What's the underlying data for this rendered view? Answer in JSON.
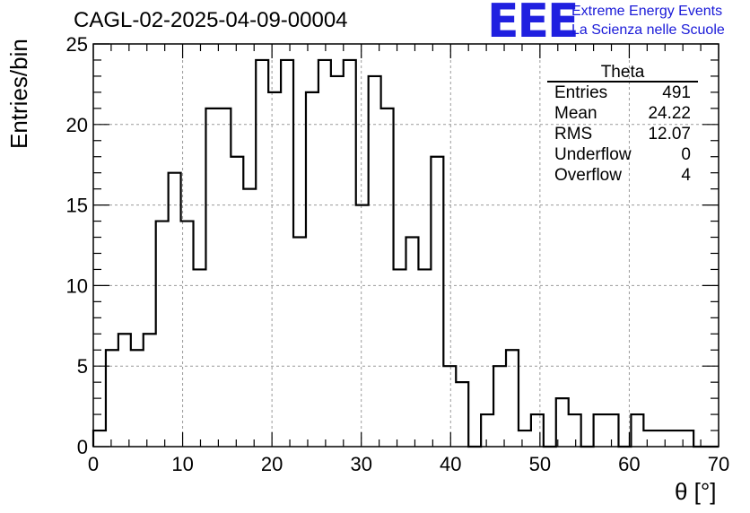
{
  "plot_title": "CAGL-02-2025-04-09-00004",
  "logo": {
    "mark": "EEE",
    "line1": "Extreme Energy Events",
    "line2": "La Scienza nelle Scuole",
    "color": "#2020e0"
  },
  "stats": {
    "title": "Theta",
    "rows": [
      {
        "key": "Entries",
        "value": "491"
      },
      {
        "key": "Mean",
        "value": "24.22"
      },
      {
        "key": "RMS",
        "value": "12.07"
      },
      {
        "key": "Underflow",
        "value": "0"
      },
      {
        "key": "Overflow",
        "value": "4"
      }
    ]
  },
  "chart_data": {
    "type": "bar",
    "style": "step-histogram",
    "title": "CAGL-02-2025-04-09-00004",
    "xlabel": "θ [°]",
    "ylabel": "Entries/bin",
    "xlim": [
      0,
      70
    ],
    "ylim": [
      0,
      25
    ],
    "xticks": [
      0,
      10,
      20,
      30,
      40,
      50,
      60,
      70
    ],
    "yticks": [
      0,
      5,
      10,
      15,
      20,
      25
    ],
    "grid": true,
    "legend": "top-right",
    "bin_width": 1.4,
    "bin_edges_start": 0,
    "values": [
      1,
      6,
      7,
      6,
      7,
      14,
      17,
      14,
      11,
      21,
      21,
      18,
      16,
      24,
      22,
      24,
      13,
      22,
      24,
      23,
      24,
      15,
      23,
      21,
      11,
      13,
      11,
      18,
      5,
      4,
      0,
      2,
      5,
      6,
      1,
      2,
      0,
      3,
      2,
      0,
      2,
      2,
      0,
      2,
      1,
      1,
      1,
      1,
      0,
      0
    ]
  }
}
